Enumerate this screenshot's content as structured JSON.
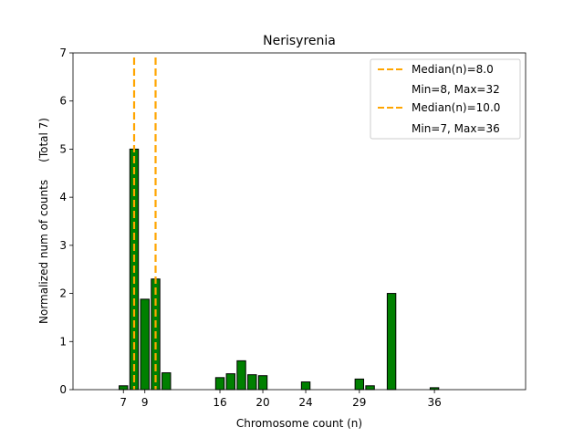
{
  "chart_data": {
    "type": "bar",
    "title": "Nerisyrenia",
    "xlabel": "Chromosome count (n)",
    "ylabel": "Normalized num of counts     (Total 7)",
    "xlim": [
      2.3,
      44.5
    ],
    "ylim": [
      0,
      7
    ],
    "x_ticks": [
      7,
      9,
      16,
      20,
      24,
      29,
      36
    ],
    "y_ticks": [
      0,
      1,
      2,
      3,
      4,
      5,
      6,
      7
    ],
    "bar_color": "#008000",
    "bar_edge_color": "#000000",
    "series": [
      {
        "name": "counts",
        "x": [
          7,
          8,
          9,
          10,
          11,
          16,
          17,
          18,
          19,
          20,
          24,
          29,
          30,
          32,
          36
        ],
        "values": [
          0.08,
          5.0,
          1.88,
          2.3,
          0.35,
          0.25,
          0.33,
          0.6,
          0.31,
          0.29,
          0.16,
          0.22,
          0.08,
          2.0,
          0.04
        ]
      }
    ],
    "median_lines": [
      {
        "x": 8.0,
        "label": "Median(n)=8.0",
        "range_label": "Min=8, Max=32",
        "color": "#ffa500"
      },
      {
        "x": 10.0,
        "label": "Median(n)=10.0",
        "range_label": "Min=7, Max=36",
        "color": "#ffa500"
      }
    ],
    "legend_position": "top-right"
  }
}
